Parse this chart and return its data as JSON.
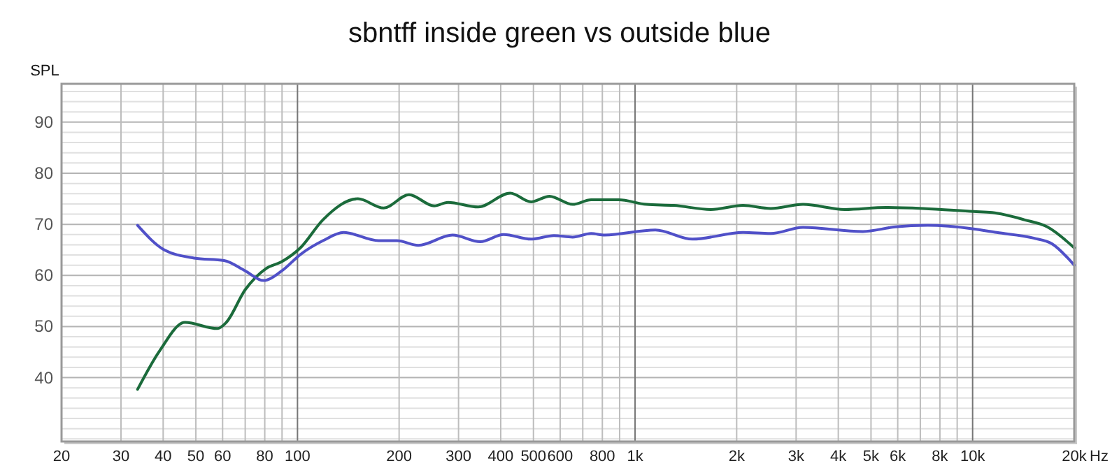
{
  "chart_data": {
    "type": "line",
    "title": "sbntff inside green vs outside blue",
    "ylabel": "SPL",
    "log": "x",
    "grid": true,
    "line_style": "solid",
    "marker": "none",
    "xlim": [
      20,
      20000
    ],
    "ylim": [
      27.5,
      97.5
    ],
    "xticks": [
      20,
      30,
      40,
      50,
      60,
      {
        "value": 70,
        "label": null
      },
      80,
      {
        "value": 90,
        "label": null
      },
      100,
      200,
      300,
      400,
      500,
      600,
      {
        "value": 700,
        "label": null
      },
      800,
      {
        "value": 900,
        "label": null
      },
      {
        "value": 1000,
        "label": "1k"
      },
      {
        "value": 2000,
        "label": "2k"
      },
      {
        "value": 3000,
        "label": "3k"
      },
      {
        "value": 4000,
        "label": "4k"
      },
      {
        "value": 5000,
        "label": "5k"
      },
      {
        "value": 6000,
        "label": "6k"
      },
      {
        "value": 7000,
        "label": null
      },
      {
        "value": 8000,
        "label": "8k"
      },
      {
        "value": 9000,
        "label": null
      },
      {
        "value": 10000,
        "label": "10k"
      },
      {
        "value": 20000,
        "label": "20k"
      }
    ],
    "xlabel": "Hz",
    "yticks": [
      {
        "value": 28,
        "label": null
      },
      {
        "value": 30,
        "label": null
      },
      {
        "value": 32,
        "label": null
      },
      {
        "value": 34,
        "label": null
      },
      {
        "value": 36,
        "label": null
      },
      {
        "value": 38,
        "label": null
      },
      40,
      {
        "value": 42,
        "label": null
      },
      {
        "value": 44,
        "label": null
      },
      {
        "value": 46,
        "label": null
      },
      {
        "value": 48,
        "label": null
      },
      50,
      {
        "value": 52,
        "label": null
      },
      {
        "value": 54,
        "label": null
      },
      {
        "value": 56,
        "label": null
      },
      {
        "value": 58,
        "label": null
      },
      60,
      {
        "value": 62,
        "label": null
      },
      {
        "value": 64,
        "label": null
      },
      {
        "value": 66,
        "label": null
      },
      {
        "value": 68,
        "label": null
      },
      70,
      {
        "value": 72,
        "label": null
      },
      {
        "value": 74,
        "label": null
      },
      {
        "value": 76,
        "label": null
      },
      {
        "value": 78,
        "label": null
      },
      80,
      {
        "value": 82,
        "label": null
      },
      {
        "value": 84,
        "label": null
      },
      {
        "value": 86,
        "label": null
      },
      {
        "value": 88,
        "label": null
      },
      90,
      {
        "value": 92,
        "label": null
      },
      {
        "value": 94,
        "label": null
      },
      {
        "value": 96,
        "label": null
      }
    ],
    "series": [
      {
        "color": "#1b6b3b",
        "x": [
          33.6,
          39.1,
          46.4,
          57.9,
          61.5,
          70,
          80.5,
          89.9,
          102,
          119,
          151,
          180,
          214,
          254,
          279,
          343,
          427,
          492,
          558,
          653,
          741,
          894,
          1080,
          1303,
          1676,
          2089,
          2523,
          3145,
          4178,
          5546,
          7130,
          10070,
          11430,
          14220,
          16640,
          20000
        ],
        "values": [
          37.7,
          45.3,
          50.8,
          49.6,
          50.8,
          57.2,
          61.3,
          62.7,
          65.4,
          70.9,
          75.0,
          73.2,
          75.8,
          73.6,
          74.3,
          73.4,
          76.1,
          74.4,
          75.5,
          73.9,
          74.8,
          74.8,
          73.9,
          73.7,
          72.9,
          73.7,
          73.1,
          73.9,
          72.9,
          73.3,
          73.1,
          72.5,
          72.3,
          70.9,
          69.5,
          65.4
        ]
      },
      {
        "color": "#5050c8",
        "x": [
          33.6,
          40.3,
          49.4,
          60.6,
          70,
          79.3,
          89.9,
          102,
          119,
          137,
          174,
          197,
          228,
          288,
          348,
          408,
          492,
          575,
          653,
          741,
          813,
          1149,
          1479,
          2089,
          2523,
          3145,
          4731,
          5902,
          7362,
          10070,
          11780,
          15170,
          17180,
          20000
        ],
        "values": [
          69.8,
          65.0,
          63.4,
          62.9,
          60.9,
          59.0,
          60.9,
          64.1,
          66.8,
          68.4,
          66.8,
          66.8,
          65.9,
          67.9,
          66.6,
          68.0,
          67.1,
          67.8,
          67.5,
          68.2,
          67.9,
          68.9,
          67.1,
          68.4,
          68.2,
          69.4,
          68.6,
          69.5,
          69.8,
          69.1,
          68.4,
          67.3,
          66.2,
          62.0
        ]
      }
    ]
  }
}
